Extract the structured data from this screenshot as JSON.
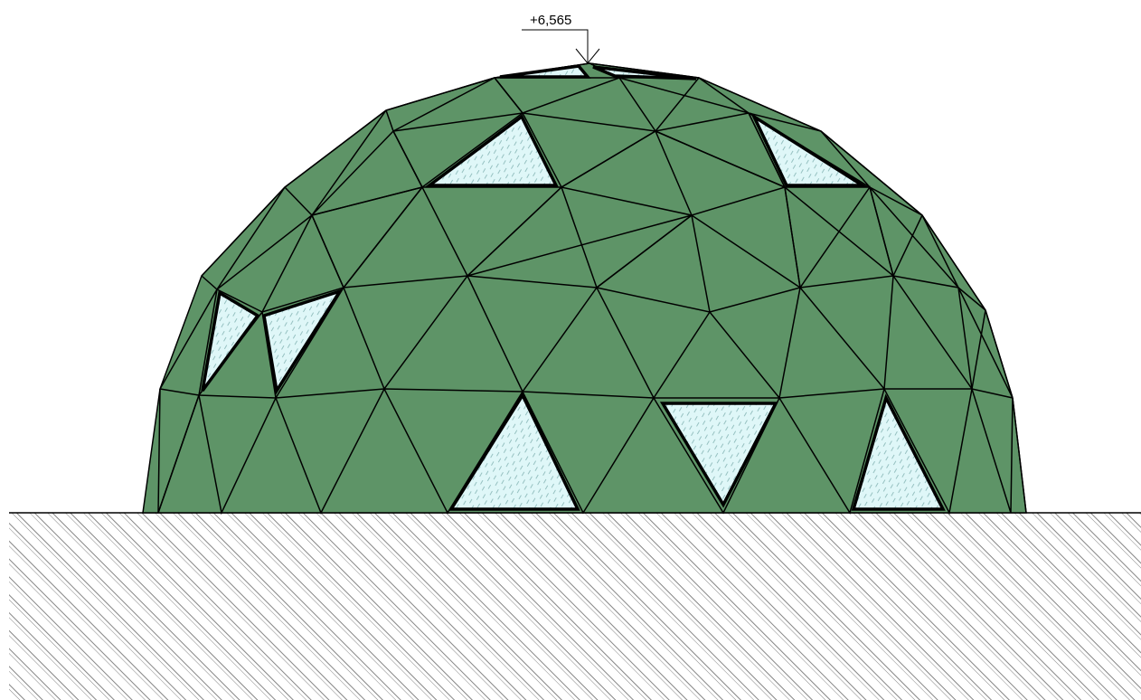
{
  "elevation_mark": {
    "label": "+6,565"
  }
}
